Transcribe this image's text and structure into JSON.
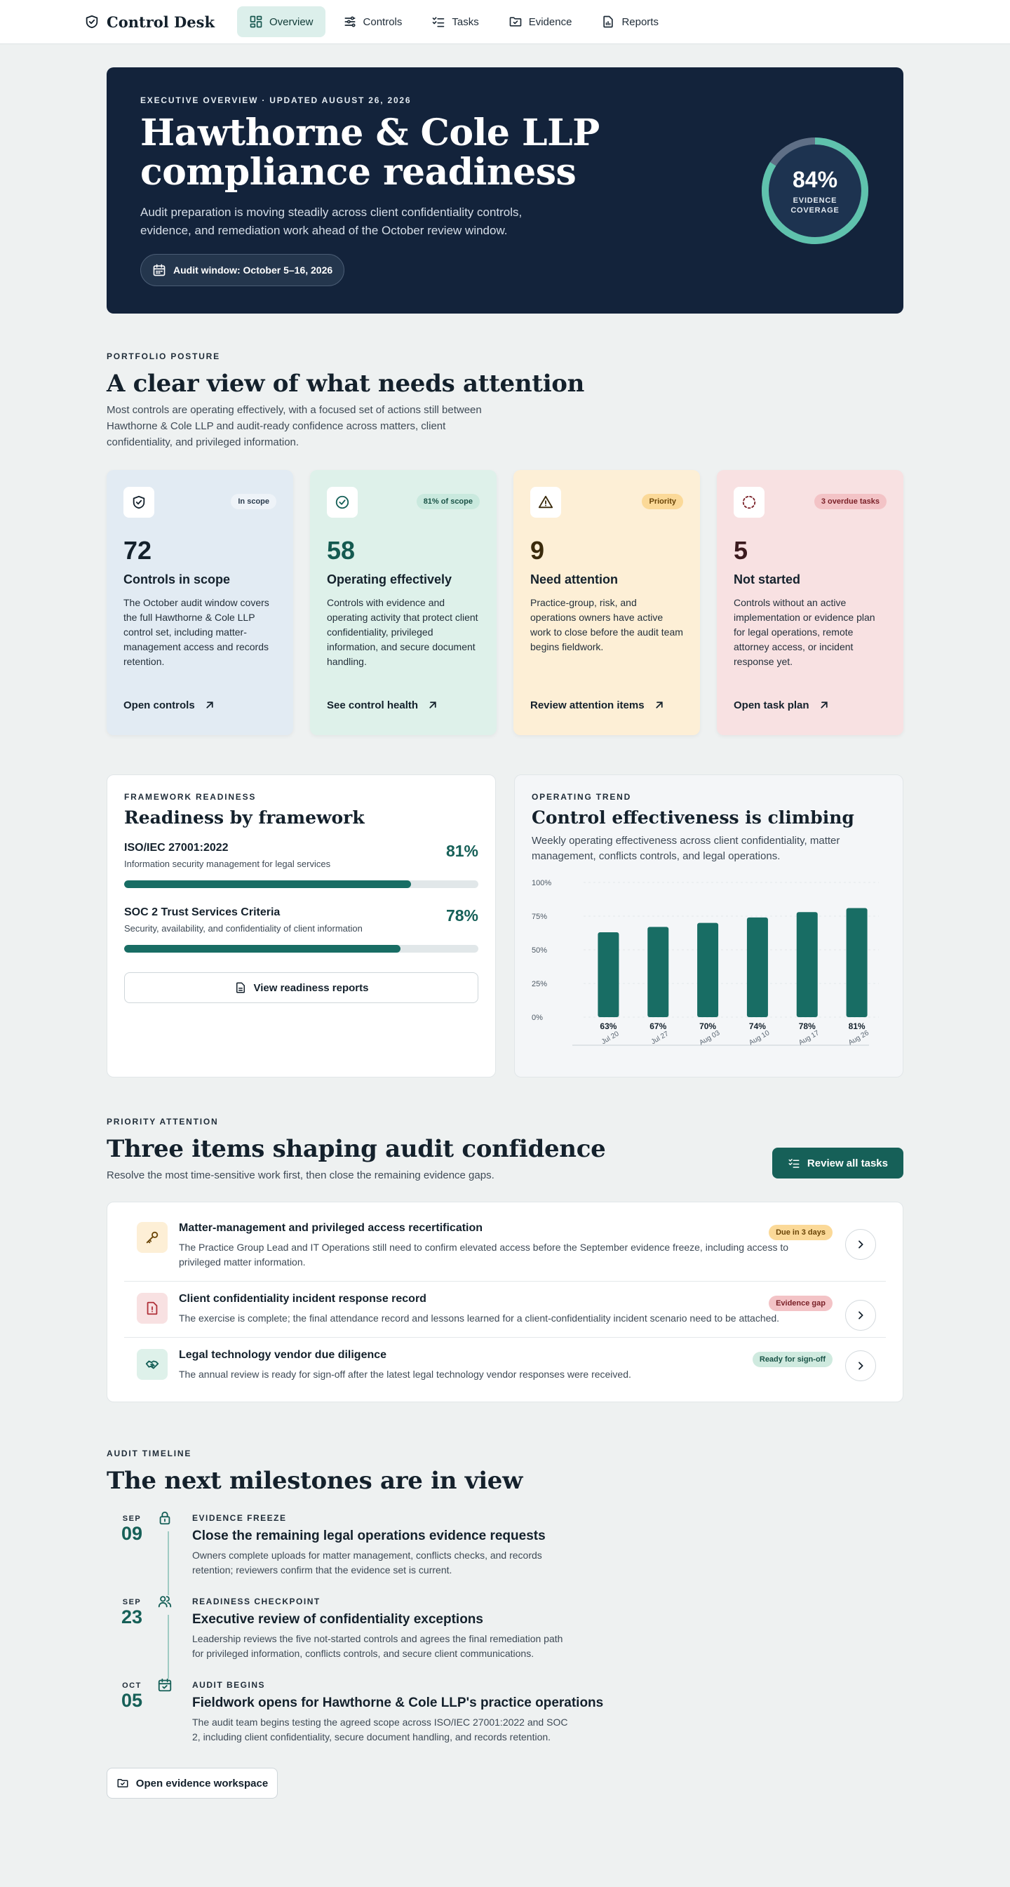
{
  "nav": {
    "brand": "Control Desk",
    "items": [
      {
        "label": "Overview",
        "icon": "grid-icon"
      },
      {
        "label": "Controls",
        "icon": "sliders-icon"
      },
      {
        "label": "Tasks",
        "icon": "checklist-icon"
      },
      {
        "label": "Evidence",
        "icon": "folder-check-icon"
      },
      {
        "label": "Reports",
        "icon": "report-icon"
      }
    ]
  },
  "hero": {
    "eyebrow": "EXECUTIVE OVERVIEW · UPDATED AUGUST 26, 2026",
    "title": "Hawthorne & Cole LLP compliance readiness",
    "description": "Audit preparation is moving steadily across client confidentiality controls, evidence, and remediation work ahead of the October review window.",
    "audit_window": "Audit window: October 5–16, 2026",
    "gauge_value": "84%",
    "gauge_fraction": 0.84,
    "gauge_label": "EVIDENCE COVERAGE"
  },
  "portfolio": {
    "eyebrow": "PORTFOLIO POSTURE",
    "title": "A clear view of what needs attention",
    "description": "Most controls are operating effectively, with a focused set of actions still between Hawthorne & Cole LLP and audit-ready confidence across matters, client confidentiality, and privileged information.",
    "cards": [
      {
        "badge": "In scope",
        "count": "72",
        "title": "Controls in scope",
        "description": "The October audit window covers the full Hawthorne & Cole LLP control set, including matter-management access and records retention.",
        "link": "Open controls"
      },
      {
        "badge": "81% of scope",
        "count": "58",
        "title": "Operating effectively",
        "description": "Controls with evidence and operating activity that protect client confidentiality, privileged information, and secure document handling.",
        "link": "See control health"
      },
      {
        "badge": "Priority",
        "count": "9",
        "title": "Need attention",
        "description": "Practice-group, risk, and operations owners have active work to close before the audit team begins fieldwork.",
        "link": "Review attention items"
      },
      {
        "badge": "3 overdue tasks",
        "count": "5",
        "title": "Not started",
        "description": "Controls without an active implementation or evidence plan for legal operations, remote attorney access, or incident response yet.",
        "link": "Open task plan"
      }
    ]
  },
  "frameworks": {
    "eyebrow": "FRAMEWORK READINESS",
    "title": "Readiness by framework",
    "items": [
      {
        "name": "ISO/IEC 27001:2022",
        "sub": "Information security management for legal services",
        "pct": "81%",
        "value": 0.81
      },
      {
        "name": "SOC 2 Trust Services Criteria",
        "sub": "Security, availability, and confidentiality of client information",
        "pct": "78%",
        "value": 0.78
      }
    ],
    "button": "View readiness reports"
  },
  "trend": {
    "eyebrow": "OPERATING TREND",
    "title": "Control effectiveness is climbing",
    "description": "Weekly operating effectiveness across client confidentiality, matter management, conflicts controls, and legal operations."
  },
  "chart_data": {
    "type": "bar",
    "categories": [
      "Jul 20",
      "Jul 27",
      "Aug 03",
      "Aug 10",
      "Aug 17",
      "Aug 26"
    ],
    "values": [
      63,
      67,
      70,
      74,
      78,
      81
    ],
    "value_labels": [
      "63%",
      "67%",
      "70%",
      "74%",
      "78%",
      "81%"
    ],
    "yticks": [
      "0%",
      "25%",
      "50%",
      "75%",
      "100%"
    ],
    "ylim": [
      0,
      100
    ],
    "grid": true,
    "color": "#186d64"
  },
  "priority": {
    "eyebrow": "PRIORITY ATTENTION",
    "title": "Three items shaping audit confidence",
    "description": "Resolve the most time-sensitive work first, then close the remaining evidence gaps.",
    "button": "Review all tasks",
    "items": [
      {
        "title": "Matter-management and privileged access recertification",
        "description": "The Practice Group Lead and IT Operations still need to confirm elevated access before the September evidence freeze, including access to privileged matter information.",
        "badge": "Due in 3 days",
        "icon": "key-icon"
      },
      {
        "title": "Client confidentiality incident response record",
        "description": "The exercise is complete; the final attendance record and lessons learned for a client-confidentiality incident scenario need to be attached.",
        "badge": "Evidence gap",
        "icon": "alert-file-icon"
      },
      {
        "title": "Legal technology vendor due diligence",
        "description": "The annual review is ready for sign-off after the latest legal technology vendor responses were received.",
        "badge": "Ready for sign-off",
        "icon": "handshake-icon"
      }
    ]
  },
  "timeline": {
    "eyebrow": "AUDIT TIMELINE",
    "title": "The next milestones are in view",
    "items": [
      {
        "month": "SEP",
        "day": "09",
        "tag": "EVIDENCE FREEZE",
        "title": "Close the remaining legal operations evidence requests",
        "description": "Owners complete uploads for matter management, conflicts checks, and records retention; reviewers confirm that the evidence set is current.",
        "icon": "lock-icon"
      },
      {
        "month": "SEP",
        "day": "23",
        "tag": "READINESS CHECKPOINT",
        "title": "Executive review of confidentiality exceptions",
        "description": "Leadership reviews the five not-started controls and agrees the final remediation path for privileged information, conflicts controls, and secure client communications.",
        "icon": "users-icon"
      },
      {
        "month": "OCT",
        "day": "05",
        "tag": "AUDIT BEGINS",
        "title": "Fieldwork opens for Hawthorne & Cole LLP's practice operations",
        "description": "The audit team begins testing the agreed scope across ISO/IEC 27001:2022 and SOC 2, including client confidentiality, secure document handling, and records retention.",
        "icon": "calendar-check-icon"
      }
    ],
    "button": "Open evidence workspace"
  }
}
